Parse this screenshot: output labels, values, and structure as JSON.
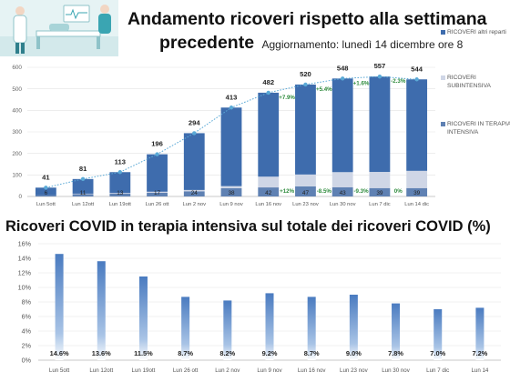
{
  "header": {
    "title_line1": "Andamento ricoveri rispetto alla settimana",
    "title_line2": "precedente",
    "update_note": "Aggiornamento: lunedì 14 dicembre ore 8"
  },
  "colors": {
    "ordinary": "#3e6cad",
    "subintensive": "#cfd6e6",
    "intensive": "#5f81b3",
    "trend_line": "#5aa9d6",
    "growth_text": "#2e8b3c",
    "pct_bar": "#4a7bc0"
  },
  "chart_data": [
    {
      "type": "bar",
      "categories": [
        "Lun 5ott",
        "Lun 12ott",
        "Lun 19ott",
        "Lun 26 ott",
        "Lun 2 nov",
        "Lun 9 nov",
        "Lun 16 nov",
        "Lun 23 nov",
        "Lun 30 nov",
        "Lun 7 dic",
        "Lun 14 dic"
      ],
      "totals": [
        41,
        81,
        113,
        196,
        294,
        413,
        482,
        520,
        548,
        557,
        544
      ],
      "series": [
        {
          "name": "RICOVERI IN TERAPIA INTENSIVA",
          "values": [
            6,
            11,
            13,
            17,
            24,
            38,
            42,
            47,
            43,
            39,
            39
          ]
        },
        {
          "name": "RICOVERI SUBINTENSIVA",
          "values": [
            0,
            2,
            3,
            5,
            6,
            10,
            50,
            55,
            70,
            75,
            80
          ]
        },
        {
          "name": "RICOVERI altri reparti",
          "values": [
            35,
            68,
            97,
            174,
            264,
            365,
            390,
            418,
            435,
            443,
            425
          ]
        }
      ],
      "intensive_labels": [
        "6",
        "11",
        "13",
        "17",
        "24",
        "38",
        "42",
        "47",
        "43",
        "39",
        "39"
      ],
      "total_labels": [
        "41",
        "81",
        "113",
        "196",
        "294",
        "413",
        "482",
        "520",
        "548",
        "557",
        "544"
      ],
      "growth_total": [
        {
          "index": 6,
          "label": "+7.9%"
        },
        {
          "index": 7,
          "label": "+5.4%"
        },
        {
          "index": 8,
          "label": "+1.6%"
        },
        {
          "index": 9,
          "label": "-2.3%"
        }
      ],
      "growth_intensive": [
        {
          "index": 6,
          "label": "+12%"
        },
        {
          "index": 7,
          "label": "-8.5%"
        },
        {
          "index": 8,
          "label": "-9.3%"
        },
        {
          "index": 9,
          "label": "0%"
        }
      ],
      "yticks": [
        "0",
        "100",
        "200",
        "300",
        "400",
        "500",
        "600"
      ],
      "ylim": [
        0,
        600
      ],
      "legend_position": "right"
    },
    {
      "type": "bar",
      "title": "Ricoveri COVID in terapia intensiva sul totale dei ricoveri COVID (%)",
      "categories": [
        "Lun 5ott",
        "Lun 12ott",
        "Lun 19ott",
        "Lun 26 ott",
        "Lun 2 nov",
        "Lun 9 nov",
        "Lun 16 nov",
        "Lun 23 nov",
        "Lun 30 nov",
        "Lun 7 dic",
        "Lun 14"
      ],
      "values": [
        14.6,
        13.6,
        11.5,
        8.7,
        8.2,
        9.2,
        8.7,
        9.0,
        7.8,
        7.0,
        7.2
      ],
      "value_labels": [
        "14.6%",
        "13.6%",
        "11.5%",
        "8.7%",
        "8.2%",
        "9.2%",
        "8.7%",
        "9.0%",
        "7.8%",
        "7.0%",
        "7.2%"
      ],
      "yticks": [
        "0%",
        "2%",
        "4%",
        "6%",
        "8%",
        "10%",
        "12%",
        "14%",
        "16%"
      ],
      "ylim": [
        0,
        16
      ]
    }
  ]
}
